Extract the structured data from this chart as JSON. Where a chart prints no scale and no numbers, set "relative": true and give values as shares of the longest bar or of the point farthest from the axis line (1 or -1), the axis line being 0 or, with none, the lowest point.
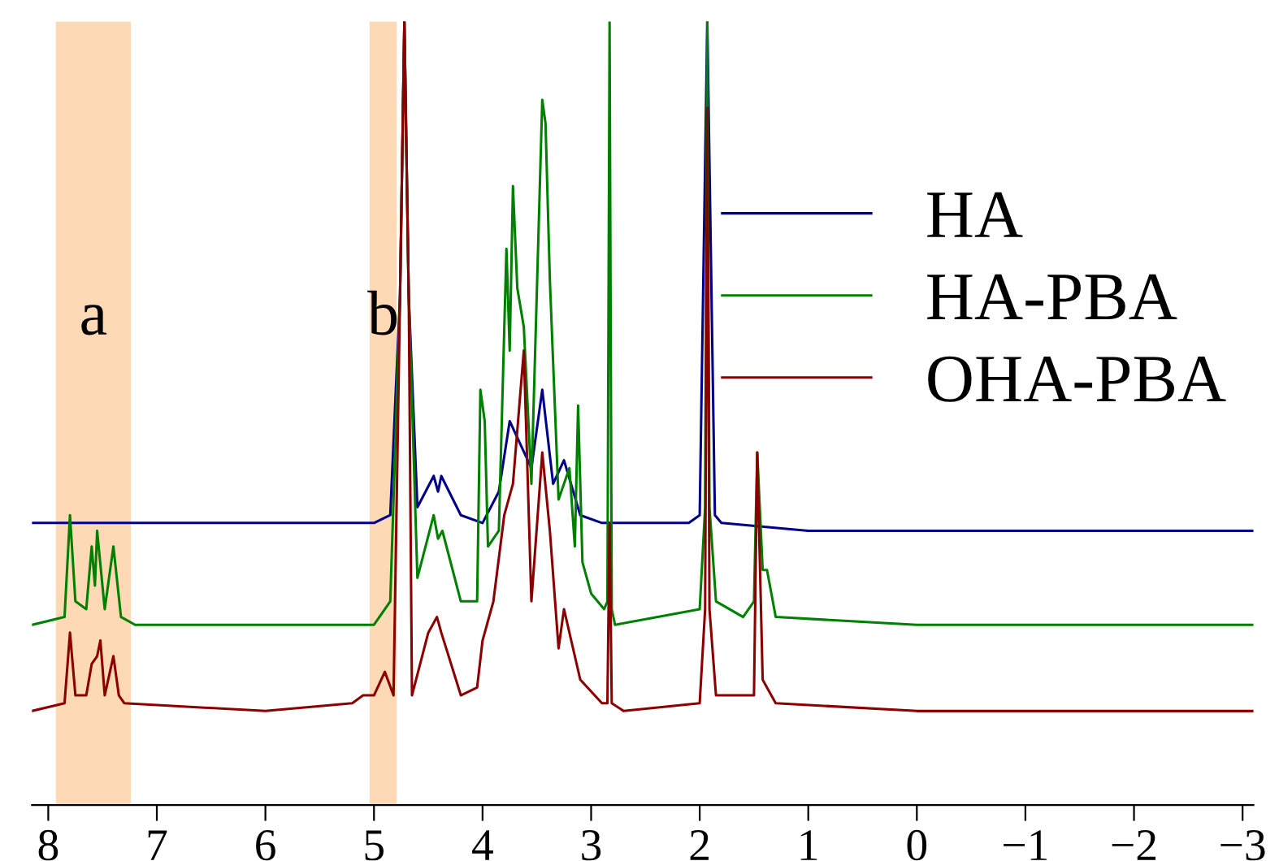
{
  "chart_data": {
    "type": "line",
    "relative": true,
    "xlim": [
      8.15,
      -3.1
    ],
    "xticks": [
      8,
      7,
      6,
      5,
      4,
      3,
      2,
      1,
      0,
      {
        "value": -1,
        "label": "−1"
      },
      {
        "value": -2,
        "label": "−2"
      },
      {
        "value": -3,
        "label": "−3"
      }
    ],
    "tick_labels": "x",
    "grid": false,
    "legend": "top right",
    "marker": "none",
    "line_style": "solid",
    "bands": [
      {
        "axis": "x",
        "from": 7.93,
        "to": 7.24,
        "label": "a",
        "color": "#fdd9b5"
      },
      {
        "axis": "x",
        "from": 5.04,
        "to": 4.79,
        "label": "b",
        "color": "#fdd9b5"
      }
    ],
    "series": [
      {
        "name": "HA",
        "color": "#00008b",
        "x": [
          8.15,
          6,
          5,
          4.85,
          4.76,
          4.72,
          4.68,
          4.6,
          4.45,
          4.41,
          4.38,
          4.2,
          4.0,
          3.85,
          3.75,
          3.65,
          3.55,
          3.45,
          3.35,
          3.25,
          3.1,
          2.9,
          2.1,
          2.0,
          1.93,
          1.86,
          1.8,
          1.0,
          0,
          -3.1
        ],
        "values": [
          0.36,
          0.36,
          0.36,
          0.37,
          0.65,
          1.0,
          0.65,
          0.38,
          0.42,
          0.4,
          0.42,
          0.37,
          0.36,
          0.4,
          0.49,
          0.46,
          0.43,
          0.53,
          0.41,
          0.44,
          0.37,
          0.36,
          0.36,
          0.37,
          1.0,
          0.37,
          0.36,
          0.35,
          0.35,
          0.35
        ]
      },
      {
        "name": "HA-PBA",
        "color": "#008000",
        "x": [
          8.15,
          7.85,
          7.8,
          7.75,
          7.65,
          7.6,
          7.57,
          7.55,
          7.48,
          7.4,
          7.33,
          7.2,
          6,
          5.0,
          4.85,
          4.76,
          4.72,
          4.68,
          4.6,
          4.45,
          4.41,
          4.37,
          4.2,
          4.05,
          4.02,
          3.98,
          3.95,
          3.85,
          3.78,
          3.75,
          3.72,
          3.68,
          3.62,
          3.55,
          3.45,
          3.42,
          3.38,
          3.3,
          3.2,
          3.15,
          3.12,
          3.08,
          3.0,
          2.88,
          2.85,
          2.83,
          2.81,
          2.78,
          2.0,
          1.95,
          1.93,
          1.91,
          1.85,
          1.6,
          1.5,
          1.47,
          1.42,
          1.38,
          1.3,
          0,
          -3.1
        ],
        "values": [
          0.23,
          0.24,
          0.37,
          0.26,
          0.25,
          0.33,
          0.28,
          0.35,
          0.25,
          0.33,
          0.24,
          0.23,
          0.23,
          0.23,
          0.26,
          0.65,
          1.0,
          0.65,
          0.29,
          0.37,
          0.34,
          0.35,
          0.26,
          0.26,
          0.53,
          0.49,
          0.33,
          0.35,
          0.71,
          0.58,
          0.79,
          0.66,
          0.61,
          0.41,
          0.9,
          0.87,
          0.67,
          0.39,
          0.43,
          0.33,
          0.51,
          0.31,
          0.27,
          0.25,
          0.26,
          1.0,
          0.25,
          0.23,
          0.25,
          0.38,
          1.0,
          0.38,
          0.26,
          0.24,
          0.26,
          0.45,
          0.3,
          0.3,
          0.24,
          0.23,
          0.23
        ]
      },
      {
        "name": "OHA-PBA",
        "color": "#8b0000",
        "x": [
          8.15,
          7.85,
          7.8,
          7.75,
          7.65,
          7.6,
          7.55,
          7.52,
          7.48,
          7.4,
          7.35,
          7.3,
          6,
          5.2,
          5.1,
          5.0,
          4.9,
          4.82,
          4.76,
          4.72,
          4.68,
          4.65,
          4.5,
          4.42,
          4.38,
          4.2,
          4.05,
          4.0,
          3.9,
          3.8,
          3.72,
          3.62,
          3.55,
          3.45,
          3.38,
          3.3,
          3.25,
          3.1,
          2.9,
          2.85,
          2.83,
          2.81,
          2.7,
          2.0,
          1.95,
          1.93,
          1.91,
          1.85,
          1.5,
          1.47,
          1.42,
          1.38,
          1.3,
          0,
          -3.1
        ],
        "values": [
          0.12,
          0.13,
          0.22,
          0.14,
          0.14,
          0.18,
          0.19,
          0.21,
          0.14,
          0.19,
          0.14,
          0.13,
          0.12,
          0.13,
          0.14,
          0.14,
          0.17,
          0.14,
          0.65,
          1.0,
          0.65,
          0.14,
          0.22,
          0.24,
          0.22,
          0.14,
          0.15,
          0.21,
          0.26,
          0.37,
          0.41,
          0.58,
          0.26,
          0.45,
          0.35,
          0.2,
          0.25,
          0.16,
          0.13,
          0.13,
          0.36,
          0.13,
          0.12,
          0.13,
          0.25,
          0.89,
          0.25,
          0.14,
          0.14,
          0.45,
          0.16,
          0.15,
          0.13,
          0.12,
          0.12
        ]
      }
    ]
  }
}
